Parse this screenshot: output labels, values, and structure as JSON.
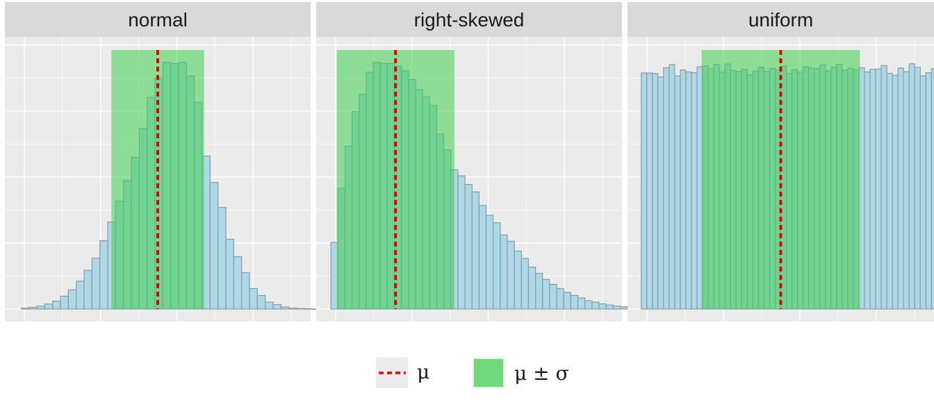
{
  "chart_data": {
    "type": "bar",
    "panels": [
      {
        "label": "normal",
        "mean": 0.0,
        "sd": 1.0,
        "xlim": [
          -3.3,
          3.3
        ],
        "ylim": [
          0,
          1.05
        ],
        "bin_edges_start": -2.95,
        "bin_width": 0.17,
        "values": [
          0.004,
          0.007,
          0.012,
          0.02,
          0.032,
          0.052,
          0.078,
          0.113,
          0.157,
          0.206,
          0.277,
          0.353,
          0.437,
          0.52,
          0.615,
          0.732,
          0.858,
          0.938,
          1.0,
          0.995,
          1.0,
          0.945,
          0.838,
          0.62,
          0.513,
          0.412,
          0.283,
          0.212,
          0.147,
          0.083,
          0.055,
          0.028,
          0.018,
          0.008,
          0.004,
          0.002,
          0.001,
          0.0
        ]
      },
      {
        "label": "right-skewed",
        "mean": 1.0,
        "sd": 1.0,
        "xlim": [
          -0.35,
          4.85
        ],
        "ylim": [
          0,
          1.05
        ],
        "bin_edges_start": -0.1,
        "bin_width": 0.12,
        "values": [
          0.27,
          0.49,
          0.66,
          0.8,
          0.87,
          0.96,
          1.0,
          0.996,
          0.995,
          0.985,
          0.965,
          0.93,
          0.89,
          0.86,
          0.825,
          0.71,
          0.645,
          0.565,
          0.54,
          0.505,
          0.475,
          0.42,
          0.38,
          0.35,
          0.3,
          0.275,
          0.235,
          0.205,
          0.17,
          0.145,
          0.12,
          0.1,
          0.083,
          0.068,
          0.055,
          0.045,
          0.034,
          0.028,
          0.021,
          0.016,
          0.012,
          0.009,
          0.005,
          0.004,
          0.003,
          0.002,
          0.001
        ]
      },
      {
        "label": "uniform",
        "mean": 0.5,
        "sd": 0.289,
        "xlim": [
          -0.06,
          1.06
        ],
        "ylim": [
          0,
          1.05
        ],
        "bin_edges_start": -0.01,
        "bin_width": 0.0204,
        "values": [
          0.957,
          0.957,
          0.955,
          0.94,
          0.978,
          0.991,
          0.945,
          0.969,
          0.961,
          0.958,
          0.982,
          0.985,
          0.974,
          0.992,
          0.96,
          0.993,
          0.967,
          0.962,
          0.972,
          0.949,
          0.965,
          0.98,
          0.963,
          0.975,
          0.968,
          0.985,
          0.955,
          0.97,
          0.96,
          0.982,
          0.977,
          0.975,
          0.99,
          0.965,
          0.98,
          0.992,
          0.968,
          0.976,
          0.97,
          0.978,
          0.961,
          0.972,
          0.973,
          0.987,
          0.955,
          0.948,
          0.977,
          0.962,
          0.994,
          0.98,
          0.945,
          0.958,
          0.974,
          0.941,
          0.97,
          0.99,
          0.98,
          0.985
        ]
      }
    ],
    "legend": [
      {
        "label": "μ",
        "kind": "dashed-line",
        "color": "#e41a1c"
      },
      {
        "label": "μ ± σ",
        "kind": "fill",
        "color": "#6fd97b"
      }
    ],
    "colors": {
      "bar_fill": "#add8e6",
      "bar_stroke": "#8a9aa5",
      "band_fill": "#3ecf4e",
      "band_opacity": 0.55,
      "mean_line": "#e60000",
      "panel_bg": "#ebebeb",
      "strip_bg": "#d9d9d9",
      "grid": "#ffffff"
    },
    "grid": true,
    "legend_position": "bottom"
  }
}
